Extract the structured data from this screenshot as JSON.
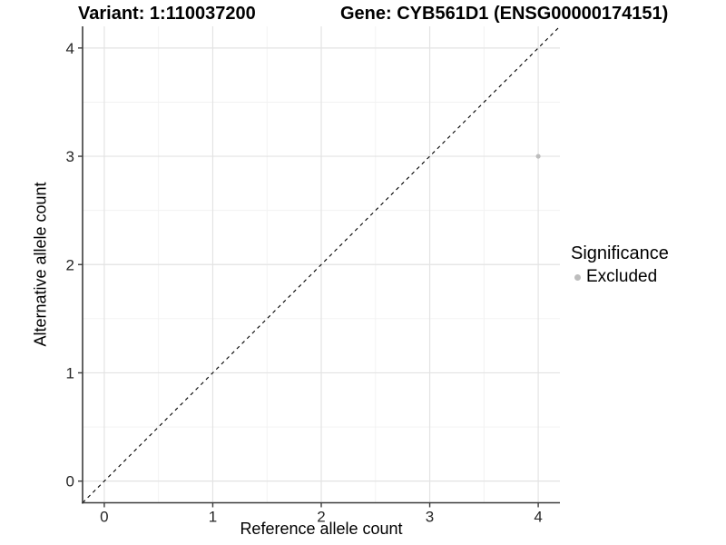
{
  "header": {
    "variant_title": "Variant: 1:110037200",
    "gene_title": "Gene: CYB561D1 (ENSG00000174151)"
  },
  "legend": {
    "title": "Significance",
    "items": [
      {
        "label": "Excluded",
        "color": "#bdbdbd"
      }
    ]
  },
  "chart_data": {
    "type": "scatter",
    "xlabel": "Reference allele count",
    "ylabel": "Alternative allele count",
    "xlim": [
      -0.2,
      4.2
    ],
    "ylim": [
      -0.2,
      4.2
    ],
    "xticks": [
      0,
      1,
      2,
      3,
      4
    ],
    "yticks": [
      0,
      1,
      2,
      3,
      4
    ],
    "xticks_minor": [
      0.5,
      1.5,
      2.5,
      3.5
    ],
    "yticks_minor": [
      0.5,
      1.5,
      2.5,
      3.5
    ],
    "grid": "major+minor",
    "legend_position": "right",
    "series": [
      {
        "name": "Excluded",
        "color": "#bdbdbd",
        "point_radius": 2.6,
        "points": [
          {
            "x": 4,
            "y": 3
          }
        ]
      }
    ],
    "reference_line": {
      "style": "dashed",
      "color": "#000000",
      "equation": "y = x",
      "from": [
        -0.2,
        -0.2
      ],
      "to": [
        4.2,
        4.2
      ]
    },
    "colors": {
      "background": "#ffffff",
      "grid_major": "#e3e3e3",
      "grid_minor": "#f1f1f1",
      "axis_line": "#3c3c3c",
      "tick_label": "#262626"
    }
  }
}
